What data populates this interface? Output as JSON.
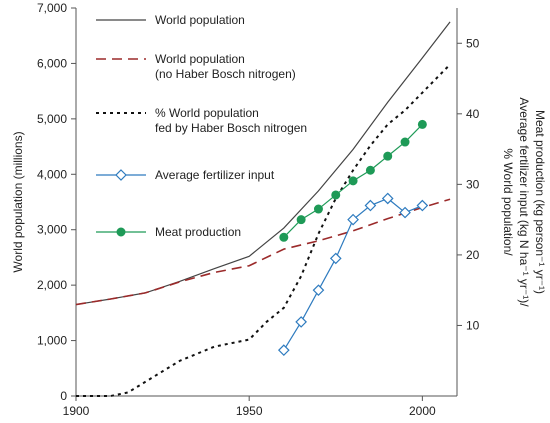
{
  "chart_data": {
    "type": "line",
    "title": "",
    "xlabel": "",
    "ylabel": "World population (millions)",
    "y2label_lines": [
      "% World population/",
      "Average fertilizer input (kg N ha⁻¹ yr⁻¹)/",
      "Meat production (kg person⁻¹ yr⁻¹)"
    ],
    "xlim": [
      1900,
      2010
    ],
    "ylim": [
      0,
      7000
    ],
    "y2lim": [
      0,
      55
    ],
    "xticks": [
      "1900",
      "1950",
      "2000"
    ],
    "yticks": [
      "0",
      "1,000",
      "2,000",
      "3,000",
      "4,000",
      "5,000",
      "6,000",
      "7,000"
    ],
    "y2ticks": [
      "10",
      "20",
      "30",
      "40",
      "50"
    ],
    "legend_position": "top-left",
    "series": [
      {
        "name": "World population",
        "axis": "left",
        "style": "solid",
        "color": "#444444",
        "marker": "none",
        "x": [
          1900,
          1910,
          1920,
          1930,
          1940,
          1950,
          1960,
          1970,
          1980,
          1990,
          2000,
          2008
        ],
        "y": [
          1650,
          1750,
          1860,
          2070,
          2300,
          2520,
          3030,
          3700,
          4450,
          5300,
          6100,
          6750
        ]
      },
      {
        "name": "World population (no Haber Bosch nitrogen)",
        "axis": "left",
        "style": "dashed",
        "color": "#9b2a2a",
        "marker": "none",
        "x": [
          1900,
          1910,
          1920,
          1930,
          1940,
          1950,
          1960,
          1970,
          1980,
          1990,
          2000,
          2008
        ],
        "y": [
          1650,
          1750,
          1860,
          2060,
          2230,
          2350,
          2650,
          2800,
          2980,
          3200,
          3400,
          3550
        ]
      },
      {
        "name": "% World population fed by Haber Bosch nitrogen",
        "axis": "right",
        "style": "dotted",
        "color": "#111111",
        "marker": "none",
        "x": [
          1900,
          1910,
          1915,
          1920,
          1930,
          1940,
          1950,
          1955,
          1960,
          1965,
          1970,
          1975,
          1980,
          1985,
          1990,
          1995,
          2000,
          2008
        ],
        "y": [
          0,
          0,
          0.5,
          2,
          5,
          7,
          8,
          10.5,
          12.5,
          17,
          23,
          28,
          32,
          35.5,
          38.5,
          40.5,
          43,
          47
        ]
      },
      {
        "name": "Average fertilizer input",
        "axis": "right",
        "style": "solid",
        "color": "#2e7bbf",
        "marker": "diamond",
        "x": [
          1960,
          1965,
          1970,
          1975,
          1980,
          1985,
          1990,
          1995,
          2000
        ],
        "y": [
          6.5,
          10.5,
          15,
          19.5,
          25,
          27,
          28,
          26,
          27
        ]
      },
      {
        "name": "Meat production",
        "axis": "right",
        "style": "solid",
        "color": "#1e9a57",
        "marker": "circle",
        "x": [
          1960,
          1965,
          1970,
          1975,
          1980,
          1985,
          1990,
          1995,
          2000
        ],
        "y": [
          22.5,
          25,
          26.5,
          28.5,
          30.5,
          32,
          34,
          36,
          38.5
        ]
      }
    ],
    "legend": [
      {
        "lines": [
          "World population"
        ],
        "series": 0
      },
      {
        "lines": [
          "World population",
          "(no Haber Bosch nitrogen)"
        ],
        "series": 1
      },
      {
        "lines": [
          "% World population",
          "fed by Haber Bosch nitrogen"
        ],
        "series": 2
      },
      {
        "lines": [
          "Average fertilizer input"
        ],
        "series": 3
      },
      {
        "lines": [
          "Meat production"
        ],
        "series": 4
      }
    ]
  }
}
